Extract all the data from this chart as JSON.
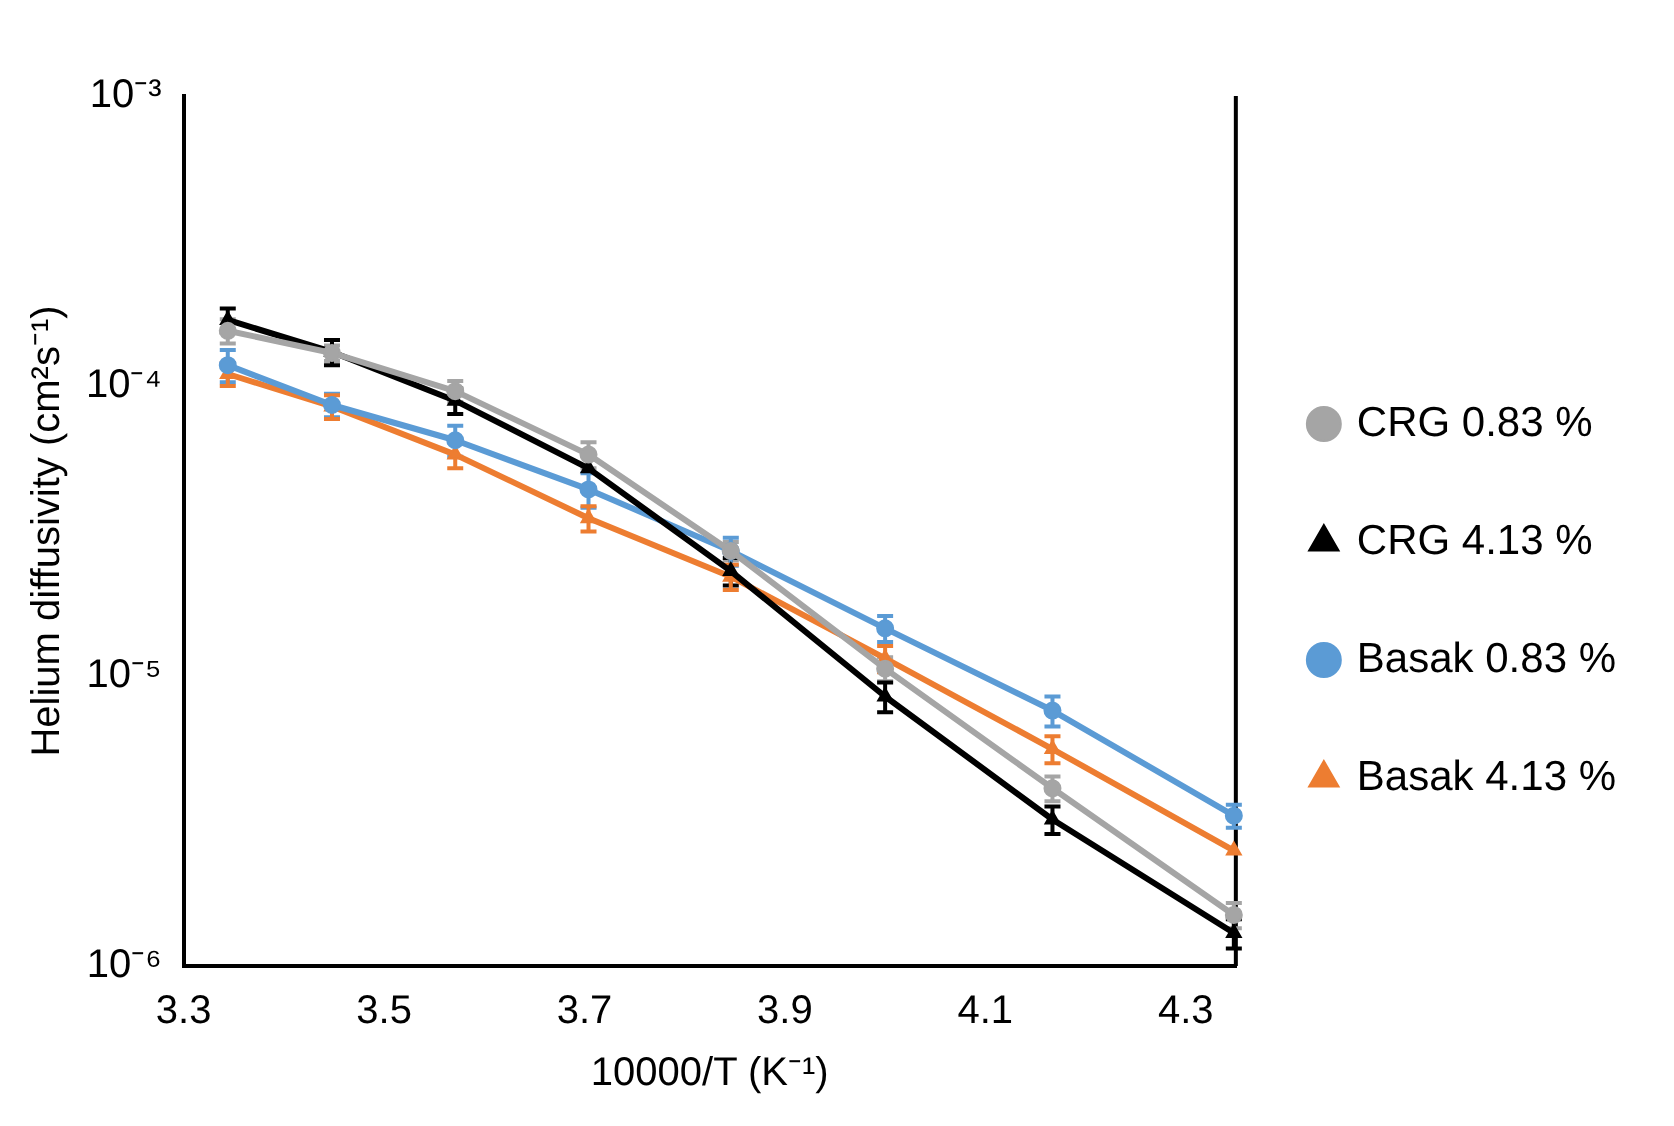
{
  "chart_data": {
    "type": "line",
    "xlabel": "10000/T (K⁻¹)",
    "ylabel": "Helium diffusivity (cm²s⁻¹)",
    "x": [
      3.344,
      3.448,
      3.571,
      3.704,
      3.846,
      4.0,
      4.167,
      4.348
    ],
    "xlim": [
      3.3,
      4.35
    ],
    "xticks": [
      3.3,
      3.5,
      3.7,
      3.9,
      4.1,
      4.3
    ],
    "log": "y",
    "ylim": [
      1e-06,
      0.001
    ],
    "yticks": [
      {
        "value": 1e-06,
        "label": "10⁻⁶"
      },
      {
        "value": 1e-05,
        "label": "10⁻⁵"
      },
      {
        "value": 0.0001,
        "label": "10⁻⁴"
      },
      {
        "value": 0.001,
        "label": "10⁻³"
      }
    ],
    "grid": false,
    "legend": "right",
    "series": [
      {
        "name": "CRG 0.83 %",
        "color": "#a5a5a5",
        "marker": "circle",
        "values": [
          0.000155,
          0.00013,
          9.6e-05,
          5.8e-05,
          2.7e-05,
          1.06e-05,
          4.1e-06,
          1.5e-06
        ],
        "errors": [
          1.5e-05,
          8e-06,
          8e-06,
          6e-06,
          2e-06,
          1e-06,
          4e-07,
          1.5e-07
        ]
      },
      {
        "name": "CRG 4.13 %",
        "color": "#000000",
        "marker": "triangle",
        "values": [
          0.000169,
          0.000131,
          8.9e-05,
          5.2e-05,
          2.3e-05,
          8.5e-06,
          3.2e-06,
          1.3e-06
        ],
        "errors": [
          1.6e-05,
          1.3e-05,
          9e-06,
          null,
          2.5e-06,
          1e-06,
          3.5e-07,
          1.5e-07
        ]
      },
      {
        "name": "Basak 0.83 %",
        "color": "#5b9bd5",
        "marker": "circle",
        "values": [
          0.000118,
          8.6e-05,
          6.5e-05,
          4.4e-05,
          2.7e-05,
          1.46e-05,
          7.6e-06,
          3.3e-06
        ],
        "errors": [
          1.5e-05,
          8e-06,
          8e-06,
          6e-06,
          3e-06,
          1.5e-06,
          9e-07,
          3e-07
        ]
      },
      {
        "name": "Basak 4.13 %",
        "color": "#ed7d31",
        "marker": "triangle",
        "values": [
          0.00011,
          8.5e-05,
          5.8e-05,
          3.5e-05,
          2.2e-05,
          1.15e-05,
          5.6e-06,
          2.5e-06
        ],
        "errors": [
          1e-05,
          8e-06,
          6e-06,
          3.5e-06,
          2.2e-06,
          1.2e-06,
          6e-07,
          null
        ]
      }
    ]
  }
}
